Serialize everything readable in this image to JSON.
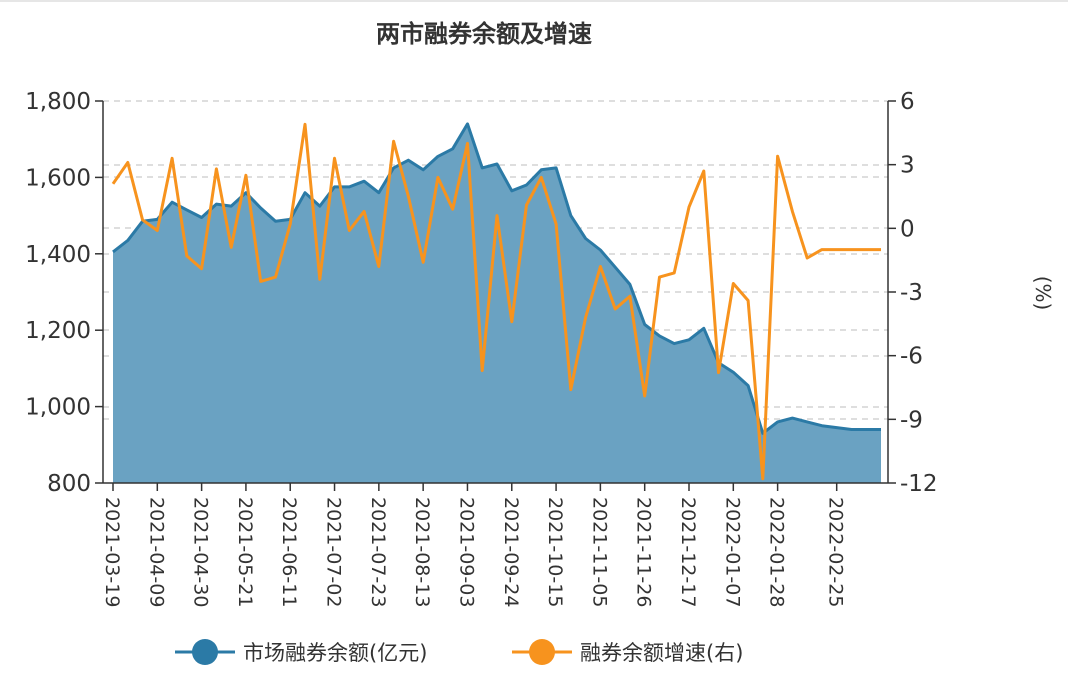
{
  "chart_data": {
    "type": "area+line",
    "title": "两市融券余额及增速",
    "left_axis": {
      "ylim": [
        800,
        1800
      ],
      "ticks": [
        800,
        1000,
        1200,
        1400,
        1600,
        1800
      ],
      "tick_labels": [
        "800",
        "1,000",
        "1,200",
        "1,400",
        "1,600",
        "1,800"
      ]
    },
    "right_axis": {
      "ylim": [
        -12,
        6
      ],
      "ticks": [
        -12,
        -9,
        -6,
        -3,
        0,
        3,
        6
      ],
      "tick_labels": [
        "-12",
        "-9",
        "-6",
        "-3",
        "0",
        "3",
        "6"
      ],
      "label": "(%)"
    },
    "x_tick_labels": [
      "2021-03-19",
      "2021-04-09",
      "2021-04-30",
      "2021-05-21",
      "2021-06-11",
      "2021-07-02",
      "2021-07-23",
      "2021-08-13",
      "2021-09-03",
      "2021-09-24",
      "2021-10-15",
      "2021-11-05",
      "2021-11-26",
      "2021-12-17",
      "2022-01-07",
      "2022-01-28",
      "2022-02-25"
    ],
    "x": [
      "2021-03-19",
      "2021-03-26",
      "2021-04-02",
      "2021-04-09",
      "2021-04-16",
      "2021-04-23",
      "2021-04-30",
      "2021-05-07",
      "2021-05-14",
      "2021-05-21",
      "2021-05-28",
      "2021-06-04",
      "2021-06-11",
      "2021-06-18",
      "2021-06-25",
      "2021-07-02",
      "2021-07-09",
      "2021-07-16",
      "2021-07-23",
      "2021-07-30",
      "2021-08-06",
      "2021-08-13",
      "2021-08-20",
      "2021-08-27",
      "2021-09-03",
      "2021-09-10",
      "2021-09-17",
      "2021-09-24",
      "2021-10-01",
      "2021-10-08",
      "2021-10-15",
      "2021-10-22",
      "2021-10-29",
      "2021-11-05",
      "2021-11-12",
      "2021-11-19",
      "2021-11-26",
      "2021-12-03",
      "2021-12-10",
      "2021-12-17",
      "2021-12-24",
      "2021-12-31",
      "2022-01-07",
      "2022-01-14",
      "2022-01-21",
      "2022-01-28",
      "2022-02-04",
      "2022-02-11",
      "2022-02-18",
      "2022-02-25",
      "2022-03-04",
      "2022-03-11",
      "2022-03-18"
    ],
    "series": [
      {
        "name": "市场融券余额(亿元)",
        "axis": "left",
        "type": "area",
        "color": "#2b7aa6",
        "fill": "#6aa2c2",
        "values": [
          1405,
          1435,
          1485,
          1490,
          1535,
          1515,
          1495,
          1530,
          1525,
          1560,
          1520,
          1485,
          1490,
          1560,
          1525,
          1575,
          1575,
          1590,
          1560,
          1625,
          1645,
          1620,
          1655,
          1675,
          1740,
          1625,
          1635,
          1565,
          1580,
          1620,
          1625,
          1500,
          1440,
          1410,
          1365,
          1320,
          1215,
          1185,
          1165,
          1175,
          1205,
          1115,
          1090,
          1055,
          930,
          960,
          970,
          960,
          950,
          945,
          940,
          940,
          940
        ]
      },
      {
        "name": "融券余额增速(右)",
        "axis": "right",
        "type": "line",
        "color": "#f7931e",
        "values": [
          2.1,
          3.1,
          0.4,
          -0.1,
          3.3,
          -1.3,
          -1.9,
          2.8,
          -0.9,
          2.5,
          -2.5,
          -2.3,
          0.2,
          4.9,
          -2.4,
          3.3,
          -0.1,
          0.8,
          -1.8,
          4.1,
          1.5,
          -1.6,
          2.4,
          0.9,
          4.0,
          -6.7,
          0.6,
          -4.4,
          1.1,
          2.4,
          0.2,
          -7.6,
          -4.2,
          -1.8,
          -3.8,
          -3.2,
          -7.9,
          -2.3,
          -2.1,
          1.0,
          2.7,
          -6.8,
          -2.6,
          -3.4,
          -11.8,
          3.4,
          0.8,
          -1.4,
          -1.0,
          -1.0,
          -1.0,
          -1.0,
          -1.0
        ]
      }
    ],
    "legend": {
      "position": "bottom",
      "entries": [
        "市场融券余额(亿元)",
        "融券余额增速(右)"
      ]
    },
    "grid": "horizontal dashed"
  }
}
